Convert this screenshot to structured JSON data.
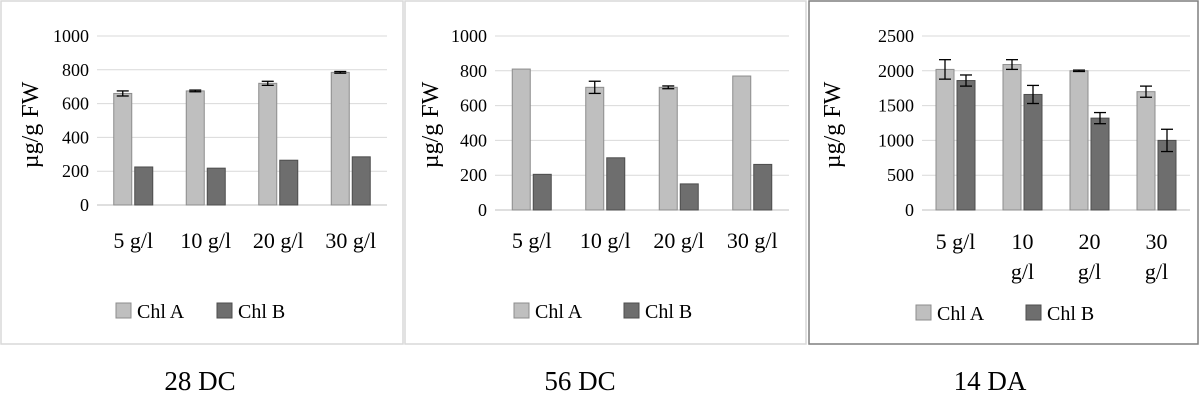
{
  "chart_data": [
    {
      "type": "bar",
      "caption": "28 DC",
      "categories": [
        "5 g/l",
        "10 g/l",
        "20 g/l",
        "30 g/l"
      ],
      "series": [
        {
          "name": "Chl A",
          "values": [
            660,
            675,
            720,
            785
          ],
          "errors": [
            15,
            5,
            12,
            5
          ]
        },
        {
          "name": "Chl B",
          "values": [
            225,
            218,
            265,
            285
          ],
          "errors": [
            0,
            0,
            0,
            0
          ]
        }
      ],
      "ylabel": "µg/g FW",
      "ylim": [
        0,
        1000
      ],
      "yticks": [
        "0",
        "200",
        "400",
        "600",
        "800",
        "1000"
      ],
      "grid": true,
      "legend": "bottom",
      "colors": {
        "Chl A": "#bfbfbf",
        "Chl B": "#6e6e6e"
      }
    },
    {
      "type": "bar",
      "caption": "56 DC",
      "categories": [
        "5 g/l",
        "10 g/l",
        "20 g/l",
        "30 g/l"
      ],
      "series": [
        {
          "name": "Chl A",
          "values": [
            810,
            705,
            705,
            770
          ],
          "errors": [
            0,
            35,
            8,
            0
          ]
        },
        {
          "name": "Chl B",
          "values": [
            205,
            300,
            150,
            262
          ],
          "errors": [
            0,
            0,
            0,
            0
          ]
        }
      ],
      "ylabel": "µg/g FW",
      "ylim": [
        0,
        1000
      ],
      "yticks": [
        "0",
        "200",
        "400",
        "600",
        "800",
        "1000"
      ],
      "grid": true,
      "legend": "bottom",
      "colors": {
        "Chl A": "#bfbfbf",
        "Chl B": "#6e6e6e"
      }
    },
    {
      "type": "bar",
      "caption": "14 DA",
      "categories": [
        "5 g/l",
        "10 g/l",
        "20 g/l",
        "30 g/l"
      ],
      "category_lines": [
        [
          "5 g/l"
        ],
        [
          "10",
          "g/l"
        ],
        [
          "20",
          "g/l"
        ],
        [
          "30",
          "g/l"
        ]
      ],
      "series": [
        {
          "name": "Chl A",
          "values": [
            2020,
            2090,
            2000,
            1700
          ],
          "errors": [
            140,
            70,
            10,
            80
          ]
        },
        {
          "name": "Chl B",
          "values": [
            1860,
            1660,
            1320,
            1000
          ],
          "errors": [
            80,
            130,
            80,
            160
          ]
        }
      ],
      "ylabel": "µg/g FW",
      "ylim": [
        0,
        2500
      ],
      "yticks": [
        "0",
        "500",
        "1000",
        "1500",
        "2000",
        "2500"
      ],
      "grid": true,
      "legend": "bottom",
      "colors": {
        "Chl A": "#bfbfbf",
        "Chl B": "#6e6e6e"
      }
    }
  ]
}
